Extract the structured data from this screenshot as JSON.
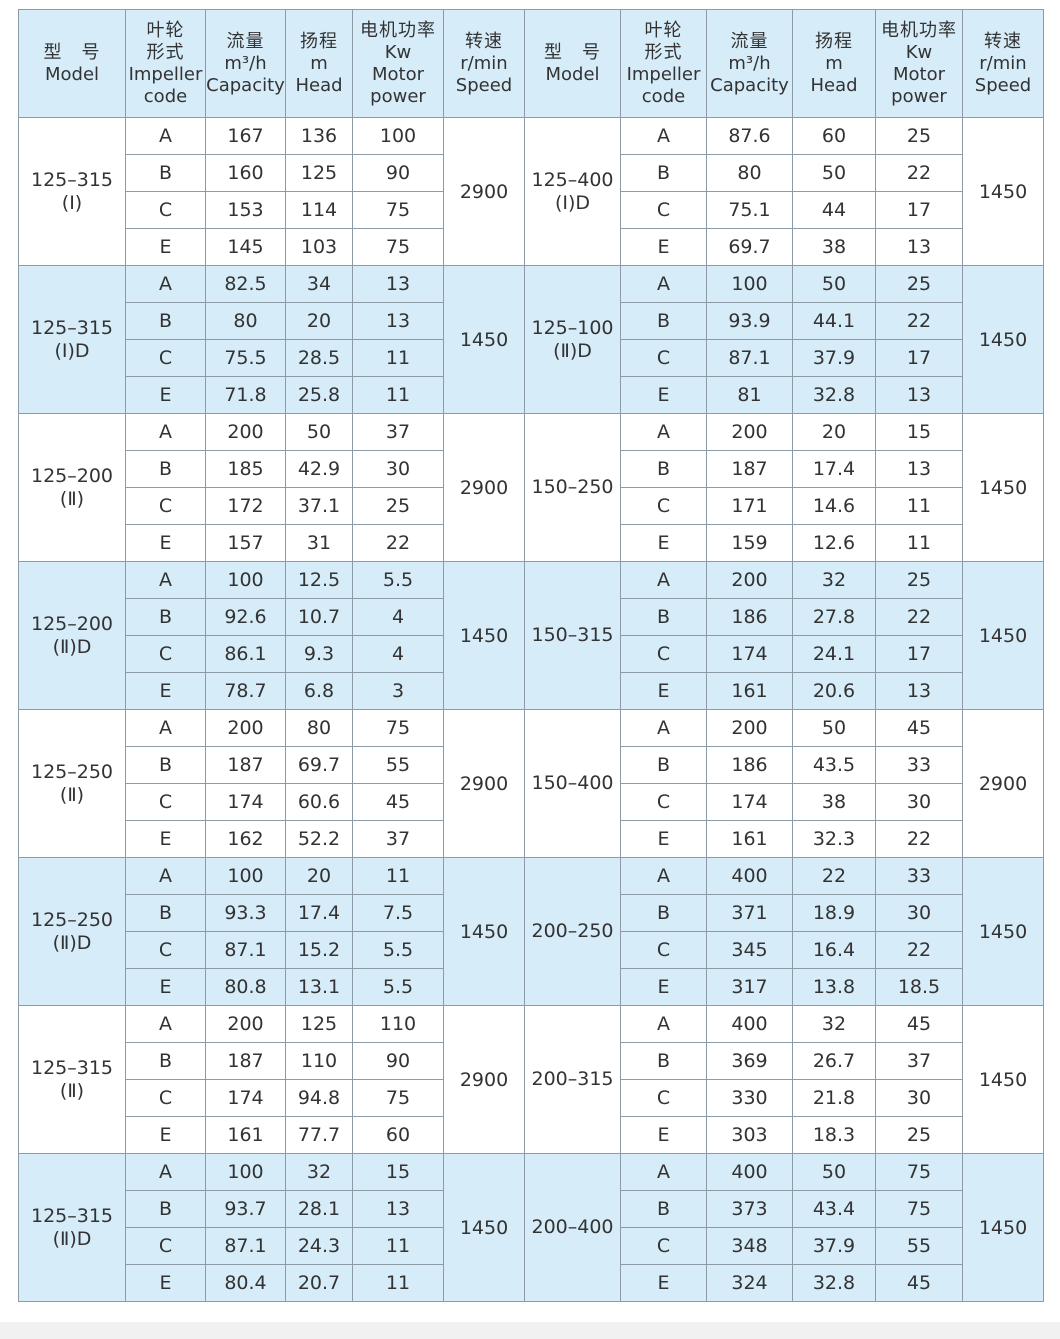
{
  "header": {
    "model": {
      "cn": "型　号",
      "en": "Model"
    },
    "impeller": {
      "cn1": "叶轮",
      "cn2": "形式",
      "en1": "Impeller",
      "en2": "code"
    },
    "capacity": {
      "cn": "流量",
      "unit": "m³/h",
      "en": "Capacity"
    },
    "head": {
      "cn": "扬程",
      "unit": "m",
      "en": "Head"
    },
    "power": {
      "cn": "电机功率",
      "unit": "Kw",
      "en1": "Motor",
      "en2": "power"
    },
    "speed": {
      "cn": "转速",
      "unit": "r/min",
      "en": "Speed"
    }
  },
  "colors": {
    "header_bg": "#d6ecf8",
    "band_bg": "#d6ecf8",
    "border": "#8d9ba6"
  },
  "groups": [
    {
      "left": {
        "model": "125–315",
        "variant": "(Ⅰ)",
        "speed": "2900",
        "rows": [
          [
            "A",
            "167",
            "136",
            "100"
          ],
          [
            "B",
            "160",
            "125",
            "90"
          ],
          [
            "C",
            "153",
            "114",
            "75"
          ],
          [
            "E",
            "145",
            "103",
            "75"
          ]
        ]
      },
      "right": {
        "model": "125–400",
        "variant": "(Ⅰ)D",
        "speed": "1450",
        "rows": [
          [
            "A",
            "87.6",
            "60",
            "25"
          ],
          [
            "B",
            "80",
            "50",
            "22"
          ],
          [
            "C",
            "75.1",
            "44",
            "17"
          ],
          [
            "E",
            "69.7",
            "38",
            "13"
          ]
        ]
      }
    },
    {
      "left": {
        "model": "125–315",
        "variant": "(Ⅰ)D",
        "speed": "1450",
        "rows": [
          [
            "A",
            "82.5",
            "34",
            "13"
          ],
          [
            "B",
            "80",
            "20",
            "13"
          ],
          [
            "C",
            "75.5",
            "28.5",
            "11"
          ],
          [
            "E",
            "71.8",
            "25.8",
            "11"
          ]
        ]
      },
      "right": {
        "model": "125–100",
        "variant": "(Ⅱ)D",
        "speed": "1450",
        "rows": [
          [
            "A",
            "100",
            "50",
            "25"
          ],
          [
            "B",
            "93.9",
            "44.1",
            "22"
          ],
          [
            "C",
            "87.1",
            "37.9",
            "17"
          ],
          [
            "E",
            "81",
            "32.8",
            "13"
          ]
        ]
      }
    },
    {
      "left": {
        "model": "125–200",
        "variant": "(Ⅱ)",
        "speed": "2900",
        "rows": [
          [
            "A",
            "200",
            "50",
            "37"
          ],
          [
            "B",
            "185",
            "42.9",
            "30"
          ],
          [
            "C",
            "172",
            "37.1",
            "25"
          ],
          [
            "E",
            "157",
            "31",
            "22"
          ]
        ]
      },
      "right": {
        "model": "150–250",
        "variant": "",
        "speed": "1450",
        "rows": [
          [
            "A",
            "200",
            "20",
            "15"
          ],
          [
            "B",
            "187",
            "17.4",
            "13"
          ],
          [
            "C",
            "171",
            "14.6",
            "11"
          ],
          [
            "E",
            "159",
            "12.6",
            "11"
          ]
        ]
      }
    },
    {
      "left": {
        "model": "125–200",
        "variant": "(Ⅱ)D",
        "speed": "1450",
        "rows": [
          [
            "A",
            "100",
            "12.5",
            "5.5"
          ],
          [
            "B",
            "92.6",
            "10.7",
            "4"
          ],
          [
            "C",
            "86.1",
            "9.3",
            "4"
          ],
          [
            "E",
            "78.7",
            "6.8",
            "3"
          ]
        ]
      },
      "right": {
        "model": "150–315",
        "variant": "",
        "speed": "1450",
        "rows": [
          [
            "A",
            "200",
            "32",
            "25"
          ],
          [
            "B",
            "186",
            "27.8",
            "22"
          ],
          [
            "C",
            "174",
            "24.1",
            "17"
          ],
          [
            "E",
            "161",
            "20.6",
            "13"
          ]
        ]
      }
    },
    {
      "left": {
        "model": "125–250",
        "variant": "(Ⅱ)",
        "speed": "2900",
        "rows": [
          [
            "A",
            "200",
            "80",
            "75"
          ],
          [
            "B",
            "187",
            "69.7",
            "55"
          ],
          [
            "C",
            "174",
            "60.6",
            "45"
          ],
          [
            "E",
            "162",
            "52.2",
            "37"
          ]
        ]
      },
      "right": {
        "model": "150–400",
        "variant": "",
        "speed": "2900",
        "rows": [
          [
            "A",
            "200",
            "50",
            "45"
          ],
          [
            "B",
            "186",
            "43.5",
            "33"
          ],
          [
            "C",
            "174",
            "38",
            "30"
          ],
          [
            "E",
            "161",
            "32.3",
            "22"
          ]
        ]
      }
    },
    {
      "left": {
        "model": "125–250",
        "variant": "(Ⅱ)D",
        "speed": "1450",
        "rows": [
          [
            "A",
            "100",
            "20",
            "11"
          ],
          [
            "B",
            "93.3",
            "17.4",
            "7.5"
          ],
          [
            "C",
            "87.1",
            "15.2",
            "5.5"
          ],
          [
            "E",
            "80.8",
            "13.1",
            "5.5"
          ]
        ]
      },
      "right": {
        "model": "200–250",
        "variant": "",
        "speed": "1450",
        "rows": [
          [
            "A",
            "400",
            "22",
            "33"
          ],
          [
            "B",
            "371",
            "18.9",
            "30"
          ],
          [
            "C",
            "345",
            "16.4",
            "22"
          ],
          [
            "E",
            "317",
            "13.8",
            "18.5"
          ]
        ]
      }
    },
    {
      "left": {
        "model": "125–315",
        "variant": "(Ⅱ)",
        "speed": "2900",
        "rows": [
          [
            "A",
            "200",
            "125",
            "110"
          ],
          [
            "B",
            "187",
            "110",
            "90"
          ],
          [
            "C",
            "174",
            "94.8",
            "75"
          ],
          [
            "E",
            "161",
            "77.7",
            "60"
          ]
        ]
      },
      "right": {
        "model": "200–315",
        "variant": "",
        "speed": "1450",
        "rows": [
          [
            "A",
            "400",
            "32",
            "45"
          ],
          [
            "B",
            "369",
            "26.7",
            "37"
          ],
          [
            "C",
            "330",
            "21.8",
            "30"
          ],
          [
            "E",
            "303",
            "18.3",
            "25"
          ]
        ]
      }
    },
    {
      "left": {
        "model": "125–315",
        "variant": "(Ⅱ)D",
        "speed": "1450",
        "rows": [
          [
            "A",
            "100",
            "32",
            "15"
          ],
          [
            "B",
            "93.7",
            "28.1",
            "13"
          ],
          [
            "C",
            "87.1",
            "24.3",
            "11"
          ],
          [
            "E",
            "80.4",
            "20.7",
            "11"
          ]
        ]
      },
      "right": {
        "model": "200–400",
        "variant": "",
        "speed": "1450",
        "rows": [
          [
            "A",
            "400",
            "50",
            "75"
          ],
          [
            "B",
            "373",
            "43.4",
            "75"
          ],
          [
            "C",
            "348",
            "37.9",
            "55"
          ],
          [
            "E",
            "324",
            "32.8",
            "45"
          ]
        ]
      }
    }
  ]
}
